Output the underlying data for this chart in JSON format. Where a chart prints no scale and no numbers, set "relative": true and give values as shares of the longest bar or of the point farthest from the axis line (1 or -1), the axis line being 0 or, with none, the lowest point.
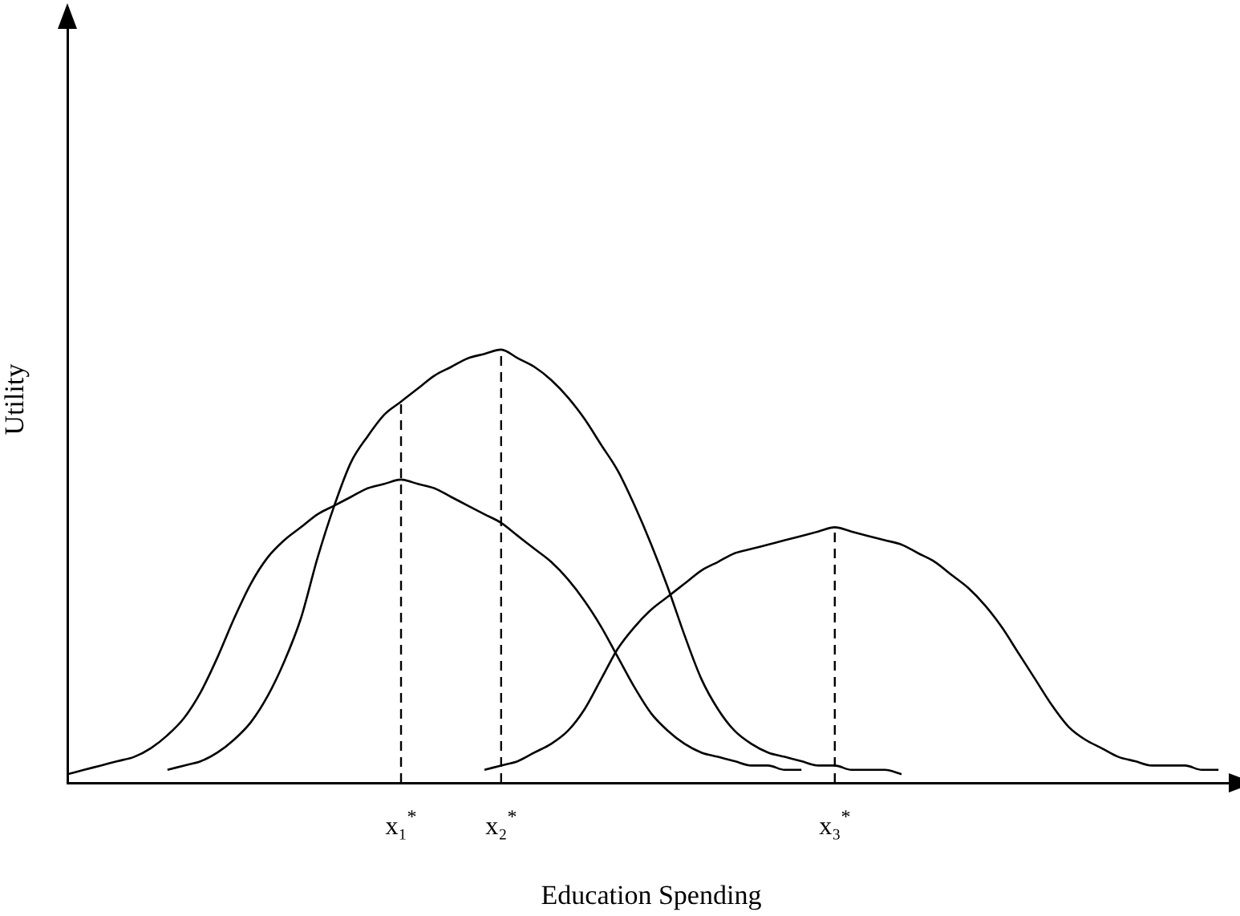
{
  "chart_data": {
    "type": "line",
    "relative": true,
    "xlabel": "Education Spending",
    "ylabel": "Utility",
    "marker": "none",
    "grid": false,
    "legend": false,
    "categories": [
      null,
      null,
      null,
      null,
      null,
      null,
      null,
      null,
      null,
      null,
      null,
      null,
      null,
      null,
      null,
      null,
      null,
      null,
      null,
      null,
      "x₁$^{*}$",
      null,
      null,
      null,
      null,
      null,
      "x₂$^{*}$",
      null,
      null,
      null,
      null,
      null,
      null,
      null,
      null,
      null,
      null,
      null,
      null,
      null,
      null,
      null,
      null,
      null,
      null,
      null,
      "x₃$^{*}$",
      null,
      null,
      null,
      null,
      null,
      null,
      null,
      null,
      null,
      null,
      null,
      null,
      null,
      null,
      null,
      null,
      null,
      null,
      null,
      null,
      null,
      null,
      null,
      null
    ],
    "series": [
      {
        "color": "#000000",
        "values": [
          0.02,
          0.03,
          0.04,
          0.05,
          0.06,
          0.08,
          0.11,
          0.15,
          0.21,
          0.29,
          0.38,
          0.46,
          0.52,
          0.56,
          0.59,
          0.62,
          0.64,
          0.66,
          0.68,
          0.69,
          0.7,
          0.69,
          0.68,
          0.66,
          0.64,
          0.62,
          0.6,
          0.57,
          0.54,
          0.51,
          0.47,
          0.42,
          0.36,
          0.29,
          0.22,
          0.16,
          0.12,
          0.09,
          0.07,
          0.06,
          0.05,
          0.04,
          0.04,
          0.03,
          0.03,
          null,
          null,
          null,
          null,
          null,
          null,
          null,
          null,
          null,
          null,
          null,
          null,
          null,
          null,
          null,
          null,
          null,
          null,
          null,
          null,
          null,
          null,
          null,
          null,
          null,
          null
        ]
      },
      {
        "color": "#000000",
        "values": [
          null,
          null,
          null,
          null,
          null,
          null,
          0.03,
          0.04,
          0.05,
          0.07,
          0.1,
          0.14,
          0.2,
          0.28,
          0.38,
          0.52,
          0.64,
          0.74,
          0.8,
          0.85,
          0.88,
          0.91,
          0.94,
          0.96,
          0.98,
          0.99,
          1.0,
          0.98,
          0.96,
          0.93,
          0.89,
          0.84,
          0.78,
          0.72,
          0.64,
          0.55,
          0.45,
          0.34,
          0.24,
          0.17,
          0.12,
          0.09,
          0.07,
          0.06,
          0.05,
          0.04,
          0.04,
          0.03,
          0.03,
          0.03,
          0.02,
          null,
          null,
          null,
          null,
          null,
          null,
          null,
          null,
          null,
          null,
          null,
          null,
          null,
          null,
          null,
          null,
          null,
          null,
          null,
          null
        ]
      },
      {
        "color": "#000000",
        "values": [
          null,
          null,
          null,
          null,
          null,
          null,
          null,
          null,
          null,
          null,
          null,
          null,
          null,
          null,
          null,
          null,
          null,
          null,
          null,
          null,
          null,
          null,
          null,
          null,
          null,
          0.03,
          0.04,
          0.05,
          0.07,
          0.09,
          0.12,
          0.17,
          0.24,
          0.31,
          0.36,
          0.4,
          0.43,
          0.46,
          0.49,
          0.51,
          0.53,
          0.54,
          0.55,
          0.56,
          0.57,
          0.58,
          0.59,
          0.58,
          0.57,
          0.56,
          0.55,
          0.53,
          0.51,
          0.48,
          0.45,
          0.41,
          0.36,
          0.3,
          0.24,
          0.18,
          0.13,
          0.1,
          0.08,
          0.06,
          0.05,
          0.04,
          0.04,
          0.04,
          0.03,
          0.03,
          null
        ]
      }
    ],
    "ref_lines": [
      {
        "axis": "x",
        "value": "x₁$^{*}$",
        "line_style": "dashed",
        "color": "#000000"
      },
      {
        "axis": "x",
        "value": "x₂$^{*}$",
        "line_style": "dashed",
        "color": "#000000"
      },
      {
        "axis": "x",
        "value": "x₃$^{*}$",
        "line_style": "dashed",
        "color": "#000000"
      }
    ]
  }
}
